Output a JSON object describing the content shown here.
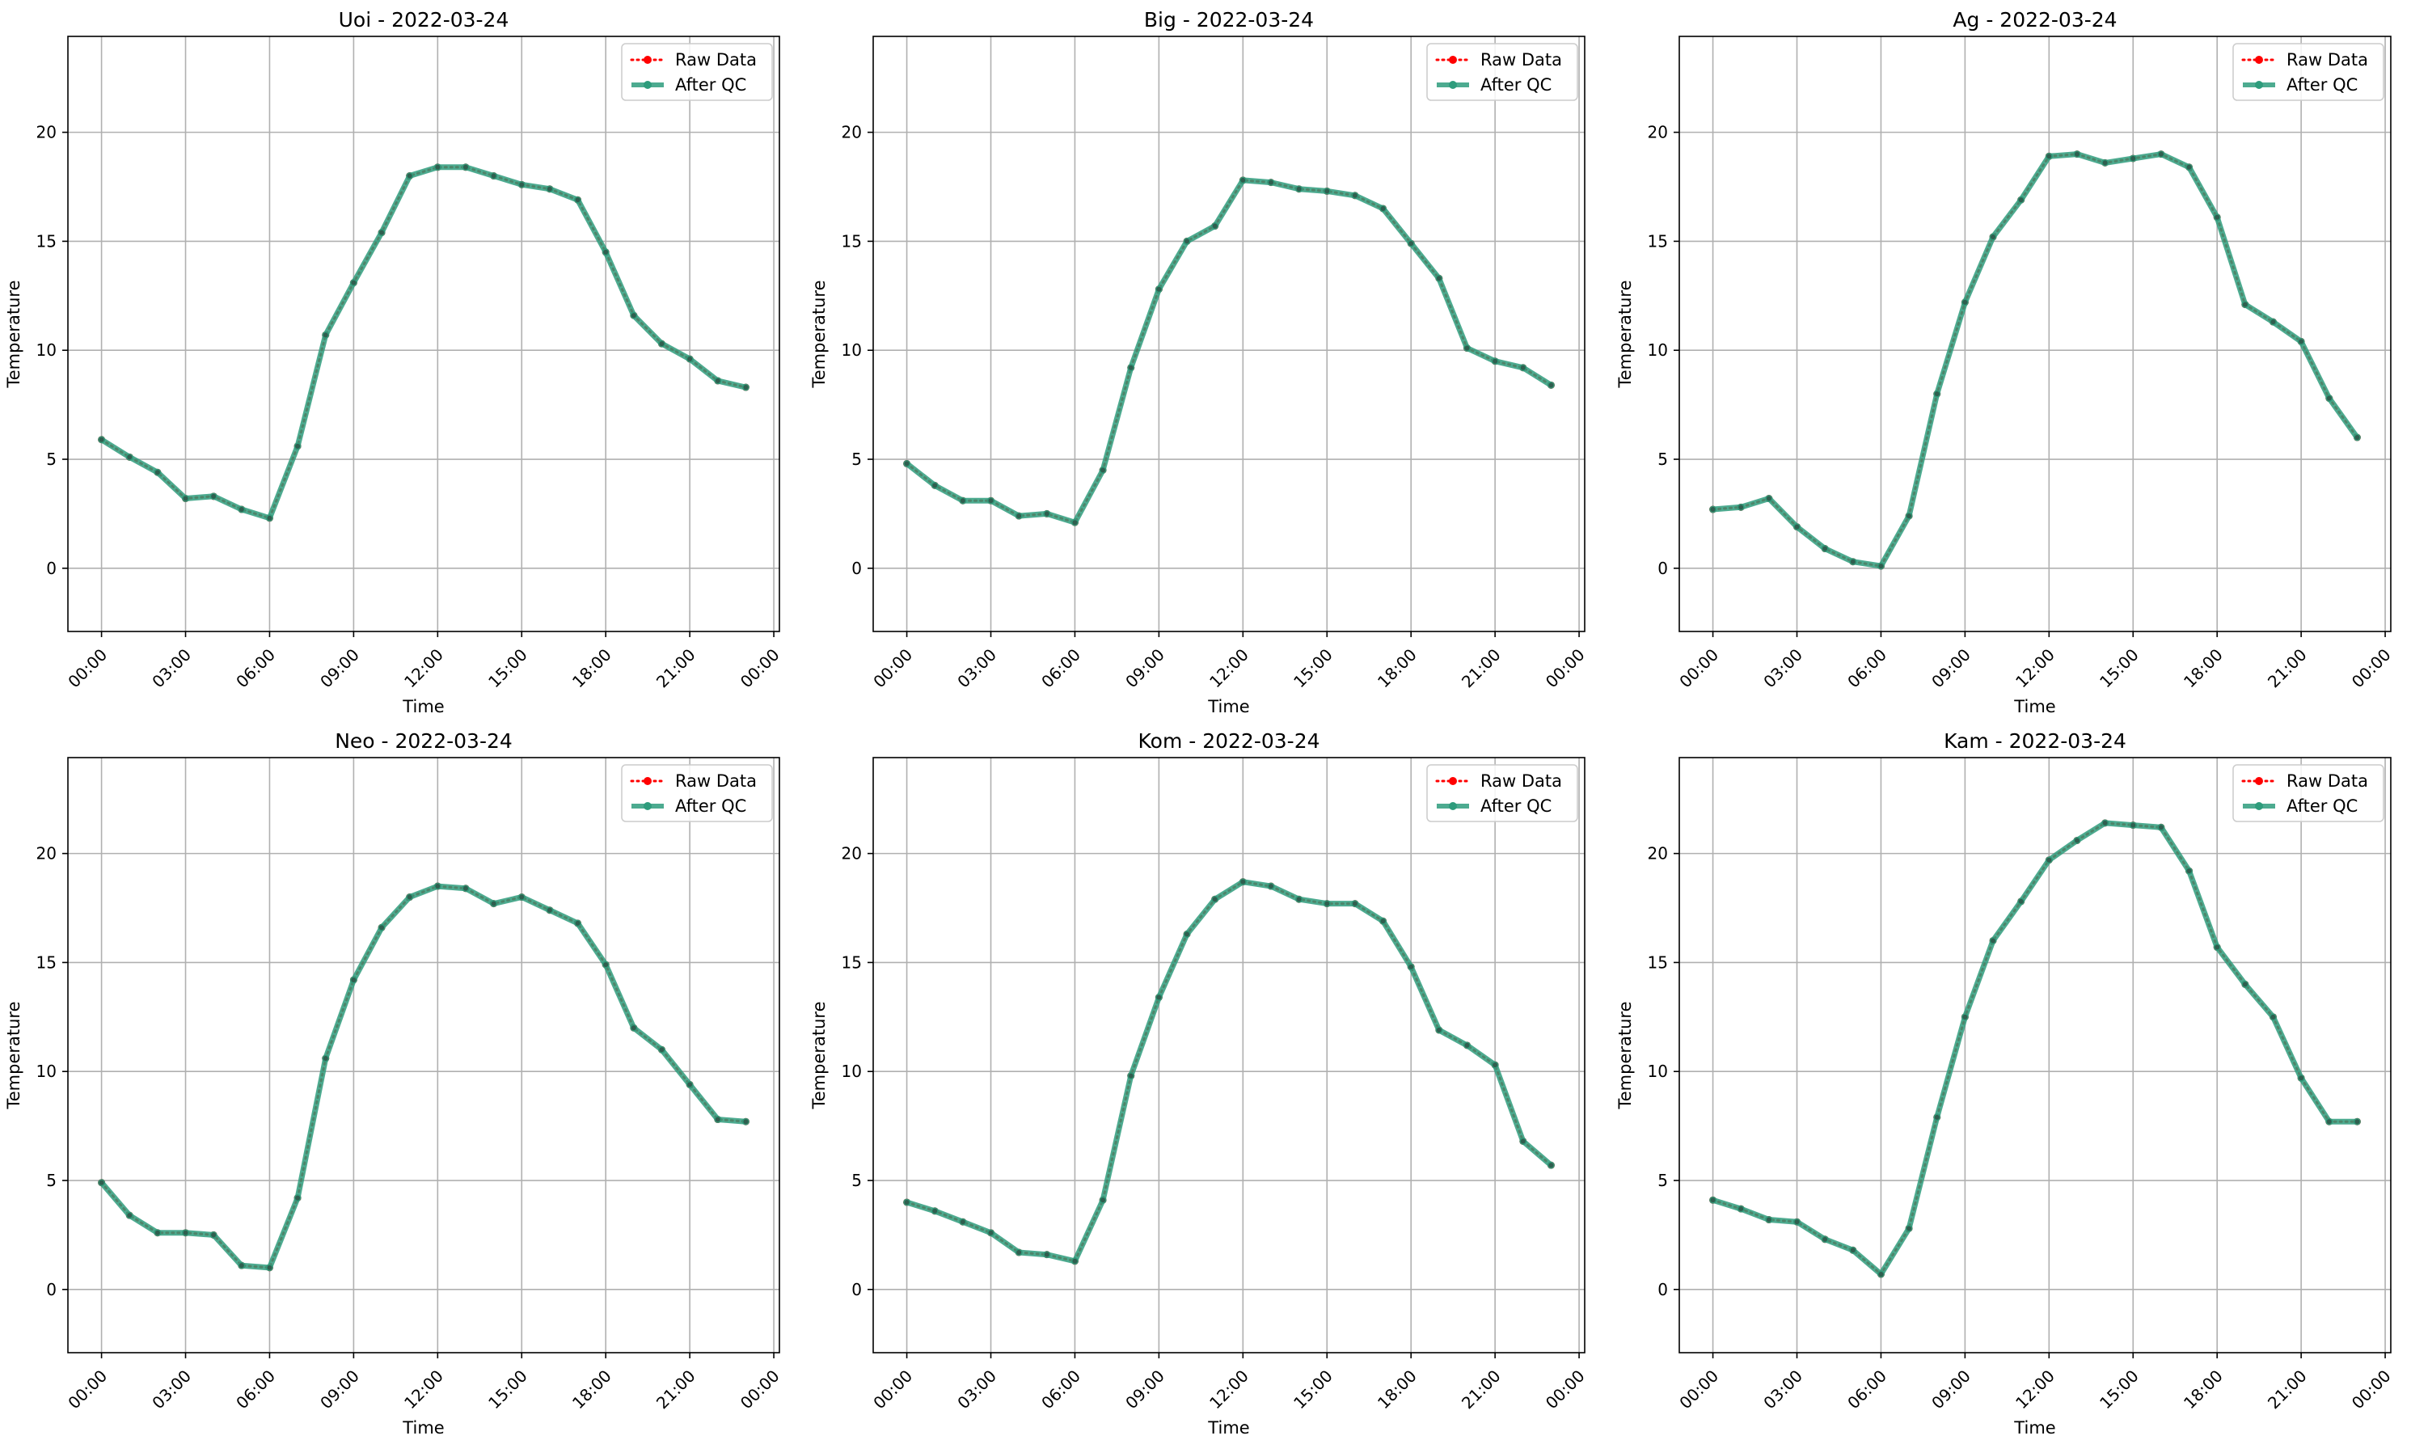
{
  "chart_data": [
    {
      "type": "line",
      "title": "Uoi - 2022-03-24",
      "xlabel": "Time",
      "ylabel": "Temperature",
      "x_ticks": [
        "00:00",
        "03:00",
        "06:00",
        "09:00",
        "12:00",
        "15:00",
        "18:00",
        "21:00",
        "00:00"
      ],
      "y_ticks": [
        0,
        5,
        10,
        15,
        20
      ],
      "xlim_hours": [
        -1.2,
        24.2
      ],
      "ylim": [
        -2.9,
        24.4
      ],
      "grid": true,
      "legend": "top-right",
      "series": [
        {
          "name": "Raw Data",
          "color": "#ff0000",
          "style": "dotted",
          "values": [
            5.9,
            5.1,
            4.4,
            3.2,
            3.3,
            2.7,
            2.3,
            5.6,
            10.7,
            13.1,
            15.4,
            18.0,
            18.4,
            18.4,
            18.0,
            17.6,
            17.4,
            16.9,
            14.5,
            11.6,
            10.3,
            9.6,
            8.6,
            8.3
          ]
        },
        {
          "name": "After QC",
          "color": "#2e9c7c",
          "style": "solid",
          "values": [
            5.9,
            5.1,
            4.4,
            3.2,
            3.3,
            2.7,
            2.3,
            5.6,
            10.7,
            13.1,
            15.4,
            18.0,
            18.4,
            18.4,
            18.0,
            17.6,
            17.4,
            16.9,
            14.5,
            11.6,
            10.3,
            9.6,
            8.6,
            8.3
          ]
        }
      ]
    },
    {
      "type": "line",
      "title": "Big - 2022-03-24",
      "xlabel": "Time",
      "ylabel": "Temperature",
      "x_ticks": [
        "00:00",
        "03:00",
        "06:00",
        "09:00",
        "12:00",
        "15:00",
        "18:00",
        "21:00",
        "00:00"
      ],
      "y_ticks": [
        0,
        5,
        10,
        15,
        20
      ],
      "xlim_hours": [
        -1.2,
        24.2
      ],
      "ylim": [
        -2.9,
        24.4
      ],
      "grid": true,
      "legend": "top-right",
      "series": [
        {
          "name": "Raw Data",
          "color": "#ff0000",
          "style": "dotted",
          "values": [
            4.8,
            3.8,
            3.1,
            3.1,
            2.4,
            2.5,
            2.1,
            4.5,
            9.2,
            12.8,
            15.0,
            15.7,
            17.8,
            17.7,
            17.4,
            17.3,
            17.1,
            16.5,
            14.9,
            13.3,
            10.1,
            9.5,
            9.2,
            8.4
          ]
        },
        {
          "name": "After QC",
          "color": "#2e9c7c",
          "style": "solid",
          "values": [
            4.8,
            3.8,
            3.1,
            3.1,
            2.4,
            2.5,
            2.1,
            4.5,
            9.2,
            12.8,
            15.0,
            15.7,
            17.8,
            17.7,
            17.4,
            17.3,
            17.1,
            16.5,
            14.9,
            13.3,
            10.1,
            9.5,
            9.2,
            8.4
          ]
        }
      ]
    },
    {
      "type": "line",
      "title": "Ag - 2022-03-24",
      "xlabel": "Time",
      "ylabel": "Temperature",
      "x_ticks": [
        "00:00",
        "03:00",
        "06:00",
        "09:00",
        "12:00",
        "15:00",
        "18:00",
        "21:00",
        "00:00"
      ],
      "y_ticks": [
        0,
        5,
        10,
        15,
        20
      ],
      "xlim_hours": [
        -1.2,
        24.2
      ],
      "ylim": [
        -2.9,
        24.4
      ],
      "grid": true,
      "legend": "top-right",
      "series": [
        {
          "name": "Raw Data",
          "color": "#ff0000",
          "style": "dotted",
          "values": [
            2.7,
            2.8,
            3.2,
            1.9,
            0.9,
            0.3,
            0.1,
            2.4,
            8.0,
            12.2,
            15.2,
            16.9,
            18.9,
            19.0,
            18.6,
            18.8,
            19.0,
            18.4,
            16.1,
            12.1,
            11.3,
            10.4,
            7.8,
            6.0
          ]
        },
        {
          "name": "After QC",
          "color": "#2e9c7c",
          "style": "solid",
          "values": [
            2.7,
            2.8,
            3.2,
            1.9,
            0.9,
            0.3,
            0.1,
            2.4,
            8.0,
            12.2,
            15.2,
            16.9,
            18.9,
            19.0,
            18.6,
            18.8,
            19.0,
            18.4,
            16.1,
            12.1,
            11.3,
            10.4,
            7.8,
            6.0
          ]
        }
      ]
    },
    {
      "type": "line",
      "title": "Neo - 2022-03-24",
      "xlabel": "Time",
      "ylabel": "Temperature",
      "x_ticks": [
        "00:00",
        "03:00",
        "06:00",
        "09:00",
        "12:00",
        "15:00",
        "18:00",
        "21:00",
        "00:00"
      ],
      "y_ticks": [
        0,
        5,
        10,
        15,
        20
      ],
      "xlim_hours": [
        -1.2,
        24.2
      ],
      "ylim": [
        -2.9,
        24.4
      ],
      "grid": true,
      "legend": "top-right",
      "series": [
        {
          "name": "Raw Data",
          "color": "#ff0000",
          "style": "dotted",
          "values": [
            4.9,
            3.4,
            2.6,
            2.6,
            2.5,
            1.1,
            1.0,
            4.2,
            10.6,
            14.2,
            16.6,
            18.0,
            18.5,
            18.4,
            17.7,
            18.0,
            17.4,
            16.8,
            14.9,
            12.0,
            11.0,
            9.4,
            7.8,
            7.7
          ]
        },
        {
          "name": "After QC",
          "color": "#2e9c7c",
          "style": "solid",
          "values": [
            4.9,
            3.4,
            2.6,
            2.6,
            2.5,
            1.1,
            1.0,
            4.2,
            10.6,
            14.2,
            16.6,
            18.0,
            18.5,
            18.4,
            17.7,
            18.0,
            17.4,
            16.8,
            14.9,
            12.0,
            11.0,
            9.4,
            7.8,
            7.7
          ]
        }
      ]
    },
    {
      "type": "line",
      "title": "Kom - 2022-03-24",
      "xlabel": "Time",
      "ylabel": "Temperature",
      "x_ticks": [
        "00:00",
        "03:00",
        "06:00",
        "09:00",
        "12:00",
        "15:00",
        "18:00",
        "21:00",
        "00:00"
      ],
      "y_ticks": [
        0,
        5,
        10,
        15,
        20
      ],
      "xlim_hours": [
        -1.2,
        24.2
      ],
      "ylim": [
        -2.9,
        24.4
      ],
      "grid": true,
      "legend": "top-right",
      "series": [
        {
          "name": "Raw Data",
          "color": "#ff0000",
          "style": "dotted",
          "values": [
            4.0,
            3.6,
            3.1,
            2.6,
            1.7,
            1.6,
            1.3,
            4.1,
            9.8,
            13.4,
            16.3,
            17.9,
            18.7,
            18.5,
            17.9,
            17.7,
            17.7,
            16.9,
            14.8,
            11.9,
            11.2,
            10.3,
            6.8,
            5.7
          ]
        },
        {
          "name": "After QC",
          "color": "#2e9c7c",
          "style": "solid",
          "values": [
            4.0,
            3.6,
            3.1,
            2.6,
            1.7,
            1.6,
            1.3,
            4.1,
            9.8,
            13.4,
            16.3,
            17.9,
            18.7,
            18.5,
            17.9,
            17.7,
            17.7,
            16.9,
            14.8,
            11.9,
            11.2,
            10.3,
            6.8,
            5.7
          ]
        }
      ]
    },
    {
      "type": "line",
      "title": "Kam - 2022-03-24",
      "xlabel": "Time",
      "ylabel": "Temperature",
      "x_ticks": [
        "00:00",
        "03:00",
        "06:00",
        "09:00",
        "12:00",
        "15:00",
        "18:00",
        "21:00",
        "00:00"
      ],
      "y_ticks": [
        0,
        5,
        10,
        15,
        20
      ],
      "xlim_hours": [
        -1.2,
        24.2
      ],
      "ylim": [
        -2.9,
        24.4
      ],
      "grid": true,
      "legend": "top-right",
      "series": [
        {
          "name": "Raw Data",
          "color": "#ff0000",
          "style": "dotted",
          "values": [
            4.1,
            3.7,
            3.2,
            3.1,
            2.3,
            1.8,
            0.7,
            2.8,
            7.9,
            12.5,
            16.0,
            17.8,
            19.7,
            20.6,
            21.4,
            21.3,
            21.2,
            19.2,
            15.7,
            14.0,
            12.5,
            9.7,
            7.7,
            7.7
          ]
        },
        {
          "name": "After QC",
          "color": "#2e9c7c",
          "style": "solid",
          "values": [
            4.1,
            3.7,
            3.2,
            3.1,
            2.3,
            1.8,
            0.7,
            2.8,
            7.9,
            12.5,
            16.0,
            17.8,
            19.7,
            20.6,
            21.4,
            21.3,
            21.2,
            19.2,
            15.7,
            14.0,
            12.5,
            9.7,
            7.7,
            7.7
          ]
        }
      ]
    }
  ]
}
